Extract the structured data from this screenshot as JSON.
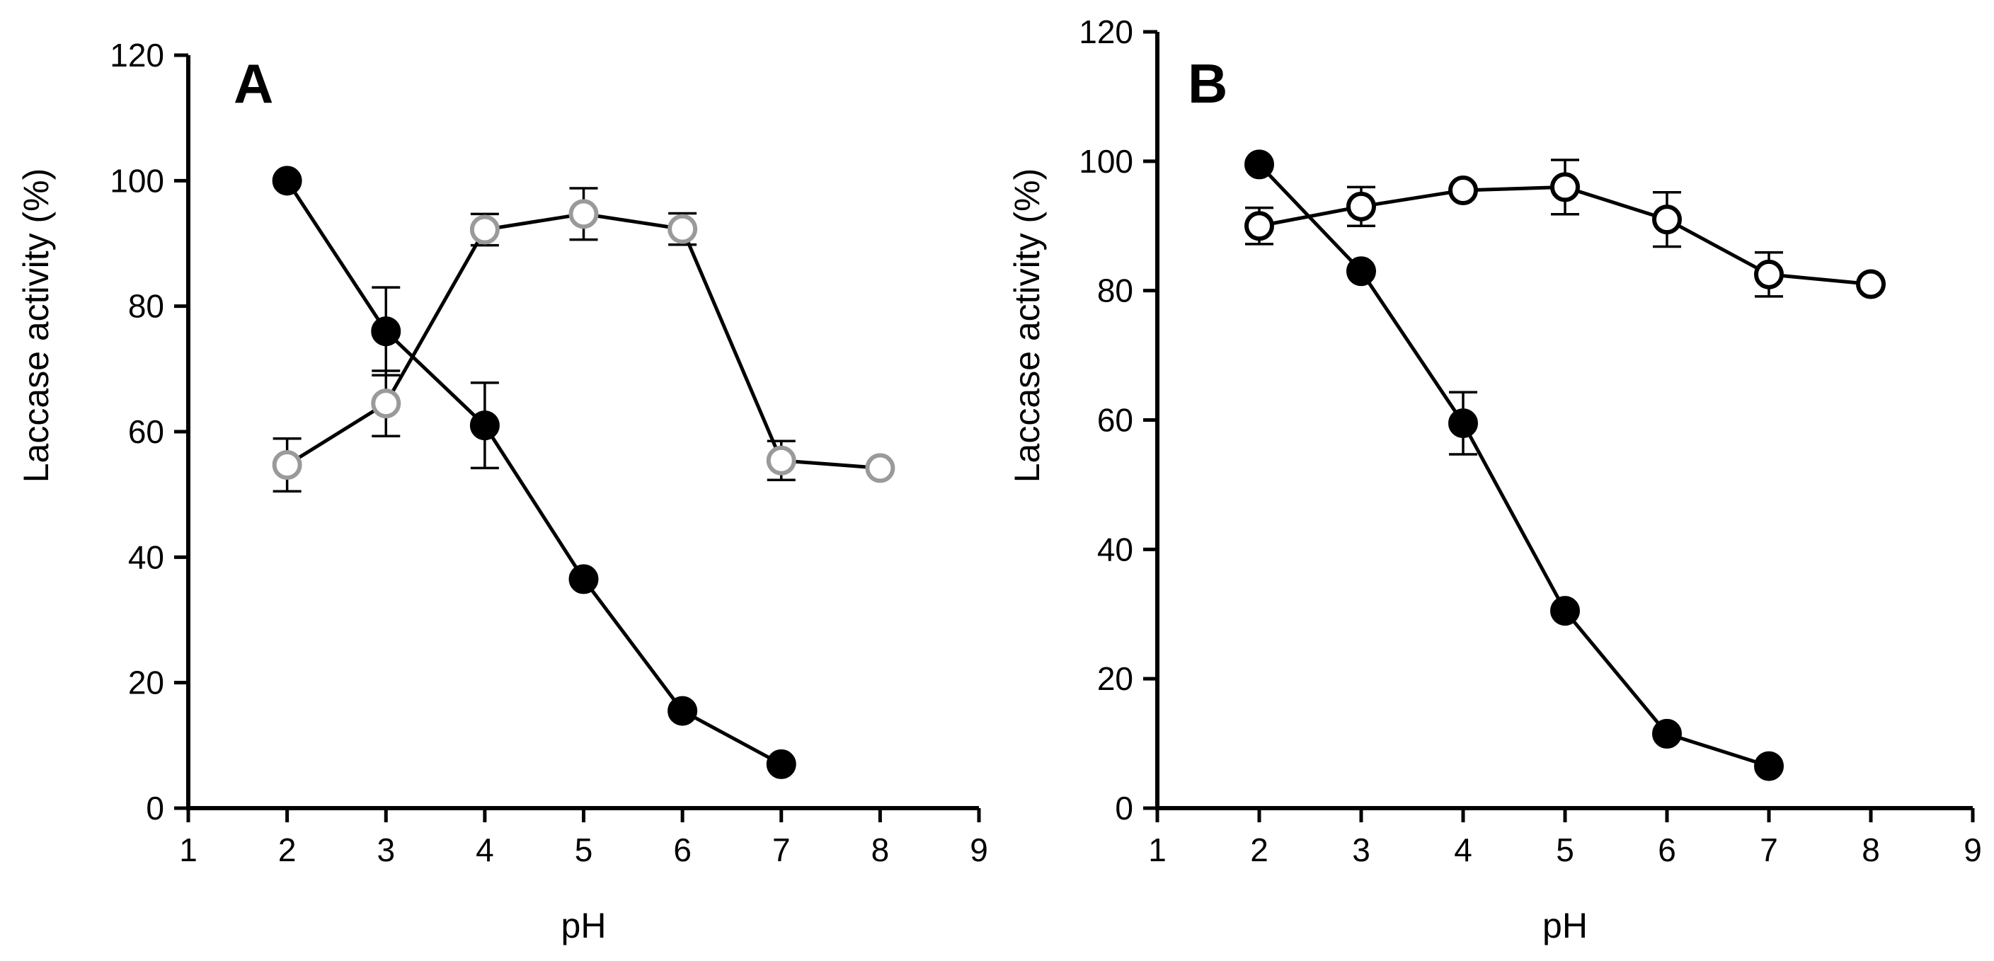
{
  "chart_data": [
    {
      "type": "line",
      "panel_label": "A",
      "xlabel": "pH",
      "ylabel": "Laccase activity (%)",
      "xlim": [
        1,
        9
      ],
      "ylim": [
        0,
        120
      ],
      "xticks": [
        1,
        2,
        3,
        4,
        5,
        6,
        7,
        8,
        9
      ],
      "yticks": [
        0,
        20,
        40,
        60,
        80,
        100,
        120
      ],
      "grid": false,
      "series": [
        {
          "name": "filled circles",
          "marker": "filled-circle",
          "color": "#000000",
          "fill": "#000000",
          "x": [
            2,
            3,
            4,
            5,
            6,
            7
          ],
          "y": [
            100,
            76,
            61,
            36.5,
            15.5,
            7
          ],
          "err": [
            0,
            7,
            6.8,
            0,
            0,
            0
          ]
        },
        {
          "name": "open circles",
          "marker": "open-circle",
          "color": "#9a9a9a",
          "fill": "#ffffff",
          "x": [
            2,
            3,
            4,
            5,
            6,
            7,
            8
          ],
          "y": [
            54.7,
            64.5,
            92.2,
            94.7,
            92.3,
            55.4,
            54.2
          ],
          "err": [
            4.2,
            5.2,
            2.5,
            4.1,
            2.5,
            3.1,
            0
          ]
        }
      ]
    },
    {
      "type": "line",
      "panel_label": "B",
      "xlabel": "pH",
      "ylabel": "Laccase activity  (%)",
      "xlim": [
        1,
        9
      ],
      "ylim": [
        0,
        120
      ],
      "xticks": [
        1,
        2,
        3,
        4,
        5,
        6,
        7,
        8,
        9
      ],
      "yticks": [
        0,
        20,
        40,
        60,
        80,
        100,
        120
      ],
      "grid": false,
      "series": [
        {
          "name": "filled circles",
          "marker": "filled-circle",
          "color": "#000000",
          "fill": "#000000",
          "x": [
            2,
            3,
            4,
            5,
            6,
            7
          ],
          "y": [
            99.5,
            83,
            59.5,
            30.5,
            11.5,
            6.5
          ],
          "err": [
            0,
            0,
            4.8,
            0,
            0,
            0
          ]
        },
        {
          "name": "open circles",
          "marker": "open-circle",
          "color": "#000000",
          "fill": "#ffffff",
          "x": [
            2,
            3,
            4,
            5,
            6,
            7,
            8
          ],
          "y": [
            90,
            93,
            95.5,
            96,
            91,
            82.5,
            81
          ],
          "err": [
            2.8,
            3,
            0,
            4.2,
            4.2,
            3.4,
            0
          ]
        }
      ]
    }
  ]
}
